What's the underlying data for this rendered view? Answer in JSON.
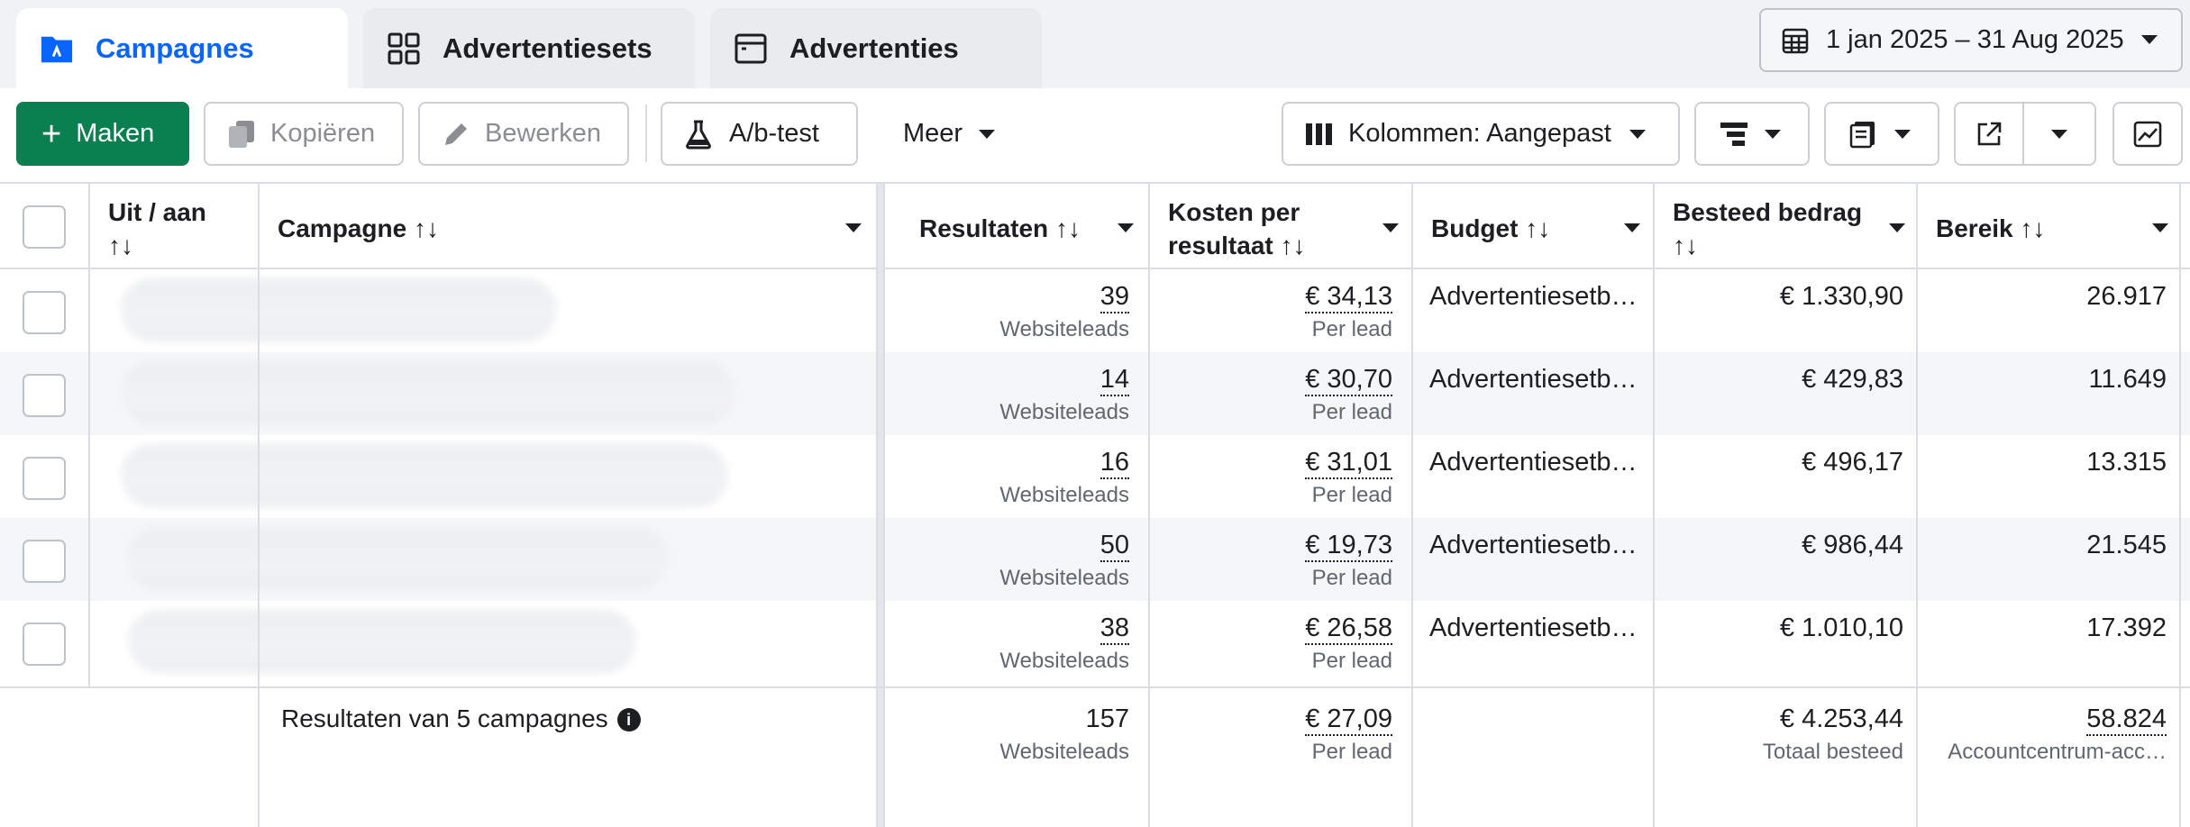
{
  "tabs": {
    "campaigns": "Campagnes",
    "adsets": "Advertentiesets",
    "ads": "Advertenties"
  },
  "date_range": "1 jan 2025 – 31 Aug 2025",
  "toolbar": {
    "create": "Maken",
    "copy": "Kopiëren",
    "edit": "Bewerken",
    "ab_test": "A/b-test",
    "more": "Meer",
    "columns": "Kolommen: Aangepast"
  },
  "columns": {
    "toggle_line1": "Uit / aan",
    "sort_glyph": "↑↓",
    "campaign": "Campagne",
    "results": "Resultaten",
    "cost_line1": "Kosten per",
    "cost_line2": "resultaat",
    "budget": "Budget",
    "spent": "Besteed bedrag",
    "reach": "Bereik"
  },
  "rows": [
    {
      "results": "39",
      "result_type": "Websiteleads",
      "cost": "€ 34,13",
      "cost_unit": "Per lead",
      "budget": "Advertentiesetb…",
      "spent": "€ 1.330,90",
      "reach": "26.917"
    },
    {
      "results": "14",
      "result_type": "Websiteleads",
      "cost": "€ 30,70",
      "cost_unit": "Per lead",
      "budget": "Advertentiesetb…",
      "spent": "€ 429,83",
      "reach": "11.649"
    },
    {
      "results": "16",
      "result_type": "Websiteleads",
      "cost": "€ 31,01",
      "cost_unit": "Per lead",
      "budget": "Advertentiesetb…",
      "spent": "€ 496,17",
      "reach": "13.315"
    },
    {
      "results": "50",
      "result_type": "Websiteleads",
      "cost": "€ 19,73",
      "cost_unit": "Per lead",
      "budget": "Advertentiesetb…",
      "spent": "€ 986,44",
      "reach": "21.545"
    },
    {
      "results": "38",
      "result_type": "Websiteleads",
      "cost": "€ 26,58",
      "cost_unit": "Per lead",
      "budget": "Advertentiesetb…",
      "spent": "€ 1.010,10",
      "reach": "17.392"
    }
  ],
  "summary": {
    "label": "Resultaten van 5 campagnes",
    "results": "157",
    "result_type": "Websiteleads",
    "cost": "€ 27,09",
    "cost_unit": "Per lead",
    "spent": "€ 4.253,44",
    "spent_note": "Totaal besteed",
    "reach": "58.824",
    "reach_note": "Accountcentrum-acc…"
  },
  "colors": {
    "brand_blue": "#0866ff",
    "create_green": "#0a7f4f"
  },
  "icons": [
    "campaign-folder-icon",
    "adsets-grid-icon",
    "ads-window-icon",
    "calendar-icon",
    "plus-icon",
    "copy-icon",
    "pencil-icon",
    "flask-icon",
    "columns-icon",
    "breakdown-icon",
    "reports-icon",
    "export-icon",
    "chart-icon",
    "info-icon"
  ]
}
